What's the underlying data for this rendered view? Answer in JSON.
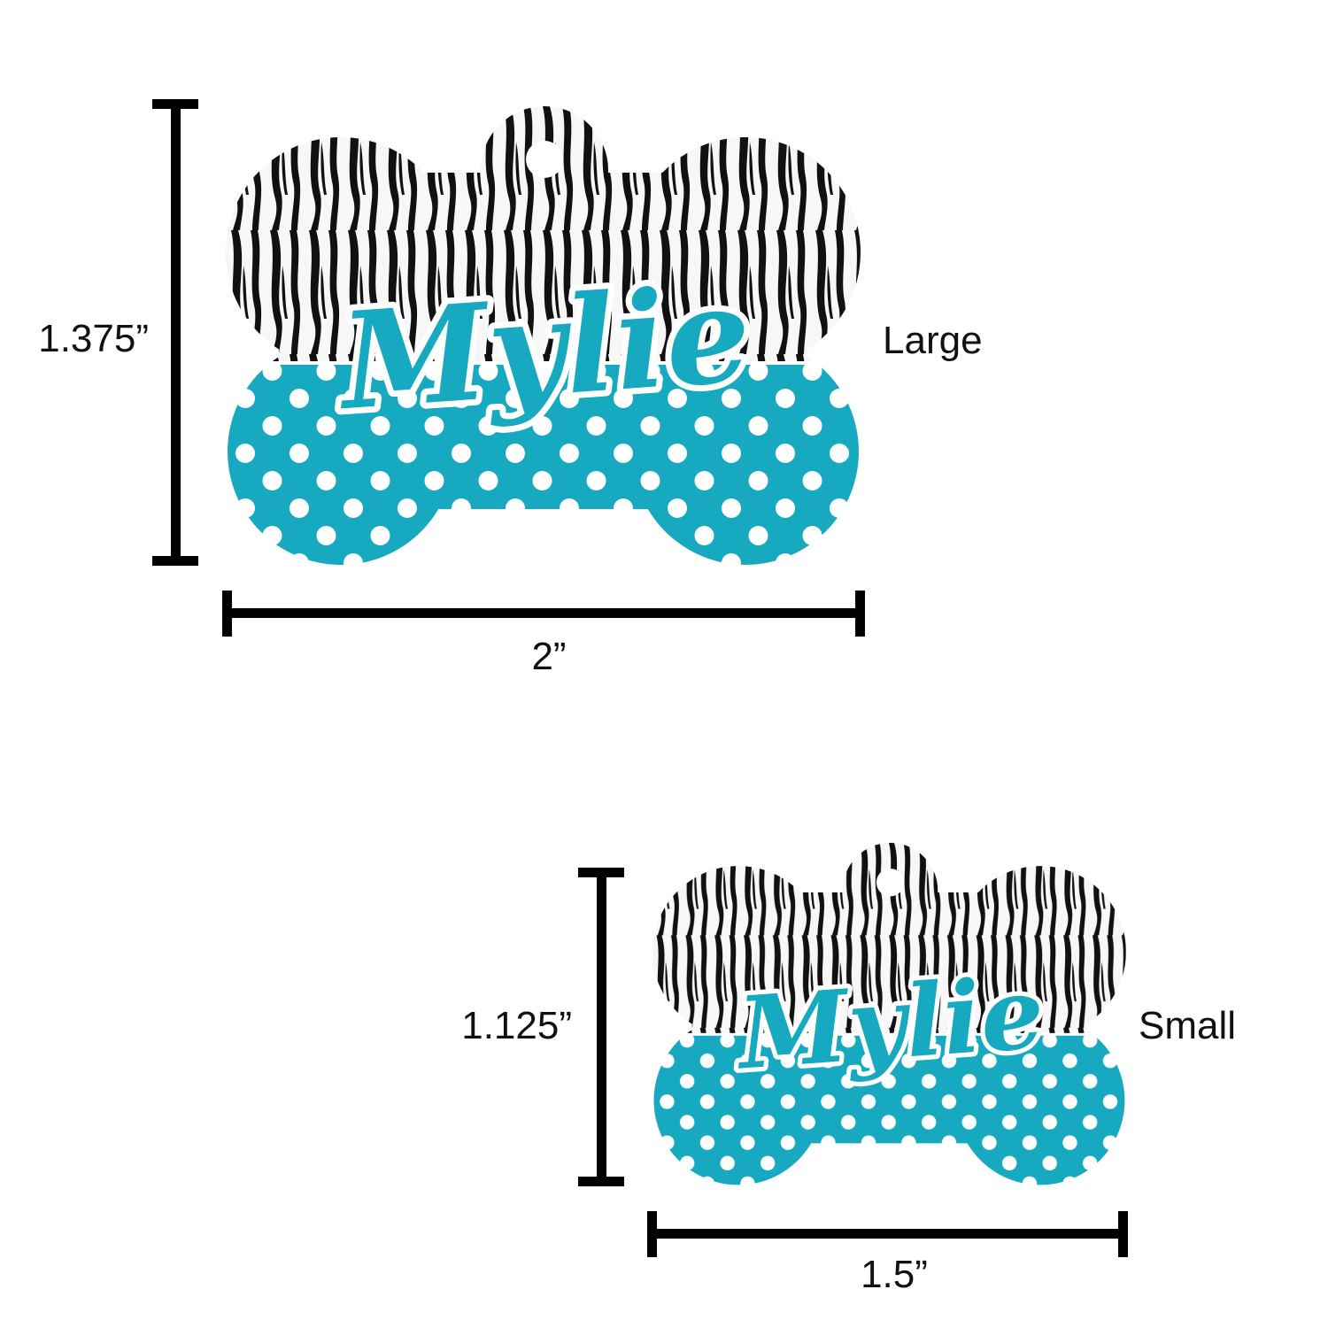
{
  "colors": {
    "teal": "#17a9bf",
    "zebra": "#111111",
    "dot": "#ffffff",
    "dimension": "#000000"
  },
  "tags": [
    {
      "size_label": "Large",
      "height_label": "1.375”",
      "width_label": "2”",
      "name": "Mylie",
      "top_pattern": "zebra-stripes",
      "bottom_pattern": "polka-dots"
    },
    {
      "size_label": "Small",
      "height_label": "1.125”",
      "width_label": "1.5”",
      "name": "Mylie",
      "top_pattern": "zebra-stripes",
      "bottom_pattern": "polka-dots"
    }
  ]
}
